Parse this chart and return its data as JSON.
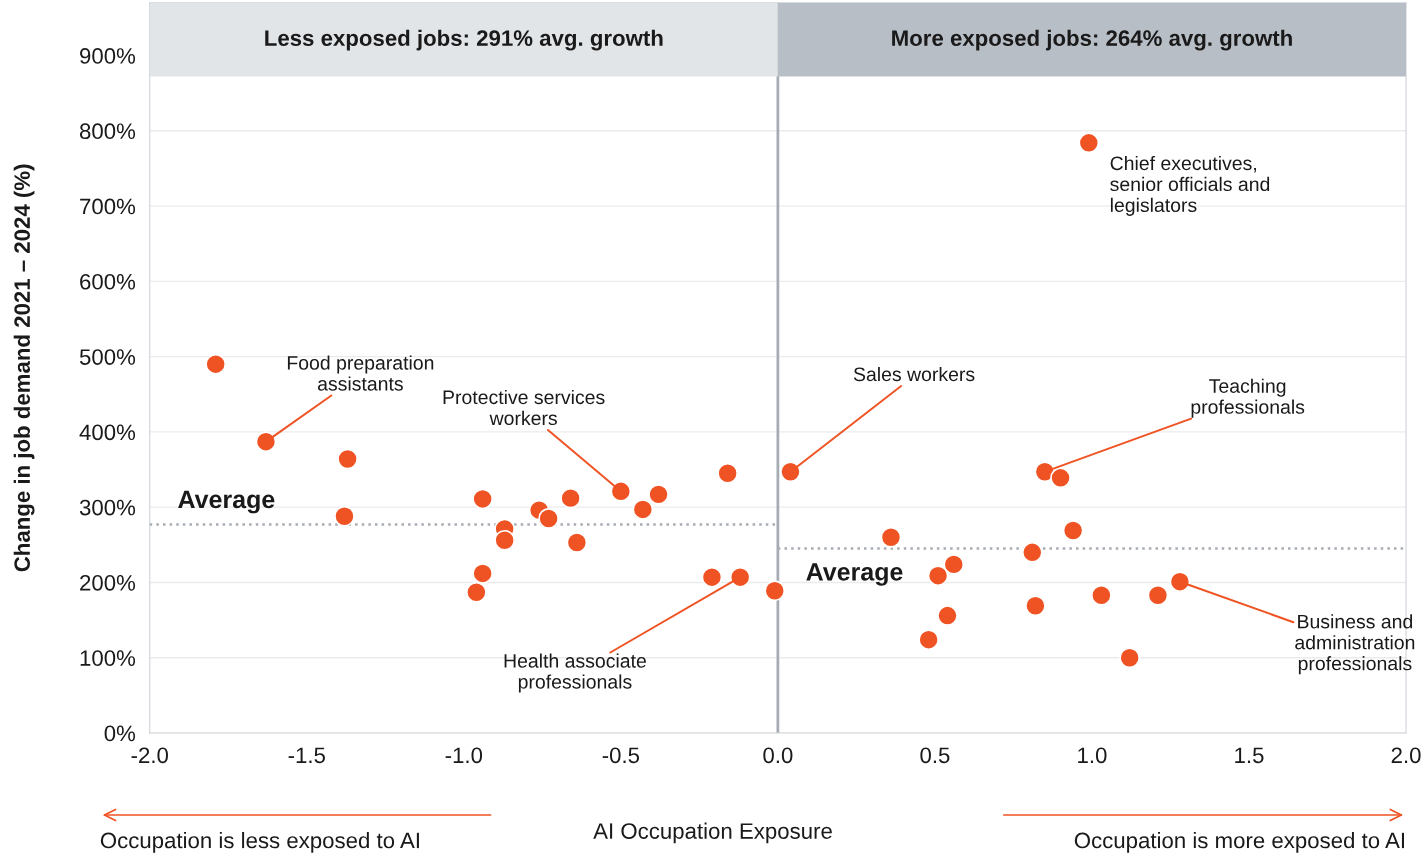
{
  "chart_data": {
    "type": "scatter",
    "xlabel": "AI Occupation Exposure",
    "ylabel": "Change in job demand 2021 – 2024 (%)",
    "xlim": [
      -2,
      2
    ],
    "ylim": [
      0,
      970
    ],
    "xticks": [
      {
        "value": -2,
        "label": "-2.0"
      },
      {
        "value": -1.5,
        "label": "-1.5"
      },
      {
        "value": -1,
        "label": "-1.0"
      },
      {
        "value": -0.5,
        "label": "-0.5"
      },
      {
        "value": 0,
        "label": "0.0"
      },
      {
        "value": 0.5,
        "label": "0.5"
      },
      {
        "value": 1,
        "label": "1.0"
      },
      {
        "value": 1.5,
        "label": "1.5"
      },
      {
        "value": 2,
        "label": "2.0"
      }
    ],
    "yticks": [
      {
        "value": 0,
        "label": "0%"
      },
      {
        "value": 100,
        "label": "100%"
      },
      {
        "value": 200,
        "label": "200%"
      },
      {
        "value": 300,
        "label": "300%"
      },
      {
        "value": 400,
        "label": "400%"
      },
      {
        "value": 500,
        "label": "500%"
      },
      {
        "value": 600,
        "label": "600%"
      },
      {
        "value": 700,
        "label": "700%"
      },
      {
        "value": 800,
        "label": "800%"
      },
      {
        "value": 900,
        "label": "900%"
      }
    ],
    "grid": "y",
    "series": [
      {
        "marker": "circle",
        "color": "#f05323",
        "x": [
          -1.79,
          -1.63,
          -1.37,
          -1.38,
          -0.94,
          -0.94,
          -0.96,
          -0.87,
          -0.87,
          -0.76,
          -0.73,
          -0.66,
          -0.64,
          -0.5,
          -0.43,
          -0.38,
          -0.16,
          -0.21,
          -0.12,
          -0.01,
          0.04,
          0.36,
          0.48,
          0.51,
          0.54,
          0.56,
          0.81,
          0.82,
          0.85,
          0.9,
          0.94,
          0.99,
          1.03,
          1.12,
          1.21,
          1.28
        ],
        "values": [
          490,
          387,
          364,
          288,
          311,
          212,
          187,
          271,
          256,
          296,
          285,
          312,
          253,
          321,
          297,
          317,
          345,
          207,
          207,
          189,
          347,
          260,
          124,
          209,
          156,
          224,
          240,
          169,
          347,
          339,
          269,
          784,
          183,
          100,
          183,
          201
        ]
      },
      {
        "type": "line",
        "name": "Average",
        "color": "#a6acb3",
        "line_style": "dotted",
        "x": [
          -2,
          0
        ],
        "values": [
          277,
          277
        ]
      },
      {
        "type": "line",
        "name": "Average",
        "color": "#a6acb3",
        "line_style": "dotted",
        "x": [
          0,
          2
        ],
        "values": [
          245,
          245
        ]
      }
    ],
    "ref_lines": [
      {
        "axis": "x",
        "value": 0,
        "color": "#a6acb3"
      }
    ],
    "bands": [
      {
        "axis": "x",
        "from": -2,
        "to": 0,
        "label": "Less exposed jobs: 291% avg. growth",
        "color": "#e2e5e8"
      },
      {
        "axis": "x",
        "from": 0,
        "to": 2,
        "label": "More exposed jobs: 264% avg. growth",
        "color": "#b8bec6"
      }
    ],
    "annotations": [
      "Occupation is less exposed to AI",
      "Occupation is more exposed to AI",
      {
        "text": "Food preparation\nassistants",
        "x": -1.63,
        "y": 387
      },
      {
        "text": "Protective services\nworkers",
        "x": -0.5,
        "y": 321
      },
      {
        "text": "Health associate\nprofessionals",
        "x": -0.12,
        "y": 207
      },
      {
        "text": "Sales workers",
        "x": 0.04,
        "y": 347
      },
      {
        "text": "Teaching\nprofessionals",
        "x": 0.85,
        "y": 347
      },
      {
        "text": "Business and\nadministration\nprofessionals",
        "x": 1.28,
        "y": 201
      },
      {
        "text": "Chief executives,\nsenior officials and\nlegislators",
        "x": 0.99,
        "y": 784
      }
    ]
  }
}
